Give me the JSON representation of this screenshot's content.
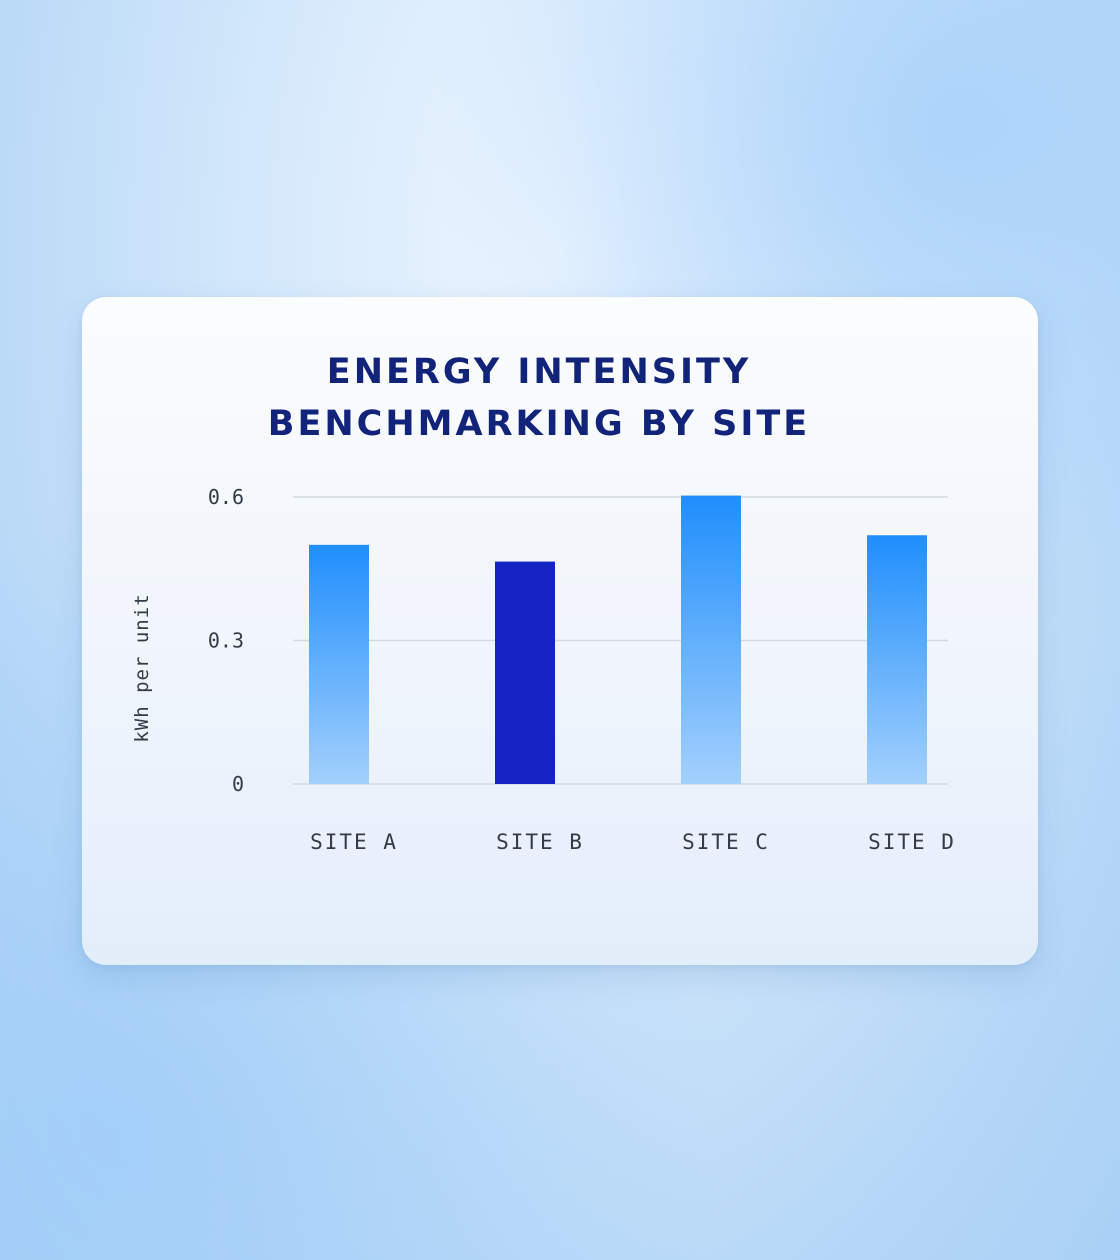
{
  "chart_data": {
    "type": "bar",
    "title_lines": [
      "ENERGY INTENSITY",
      "BENCHMARKING BY SITE"
    ],
    "categories": [
      "SITE A",
      "SITE B",
      "SITE C",
      "SITE D"
    ],
    "values": [
      0.5,
      0.465,
      0.603,
      0.52
    ],
    "highlight_index": 1,
    "ylabel": "kWh per unit",
    "xlabel": "",
    "ylim": [
      0,
      0.6
    ],
    "yticks": [
      0,
      0.3,
      0.6
    ],
    "ytick_labels": [
      "0",
      "0.3",
      "0.6"
    ],
    "grid": true,
    "colors": {
      "bar_top": "#1f8efc",
      "bar_bottom": "#a3d0fd",
      "highlight": "#1623c3",
      "grid": "#d4d9e2",
      "title": "#12237a"
    }
  }
}
